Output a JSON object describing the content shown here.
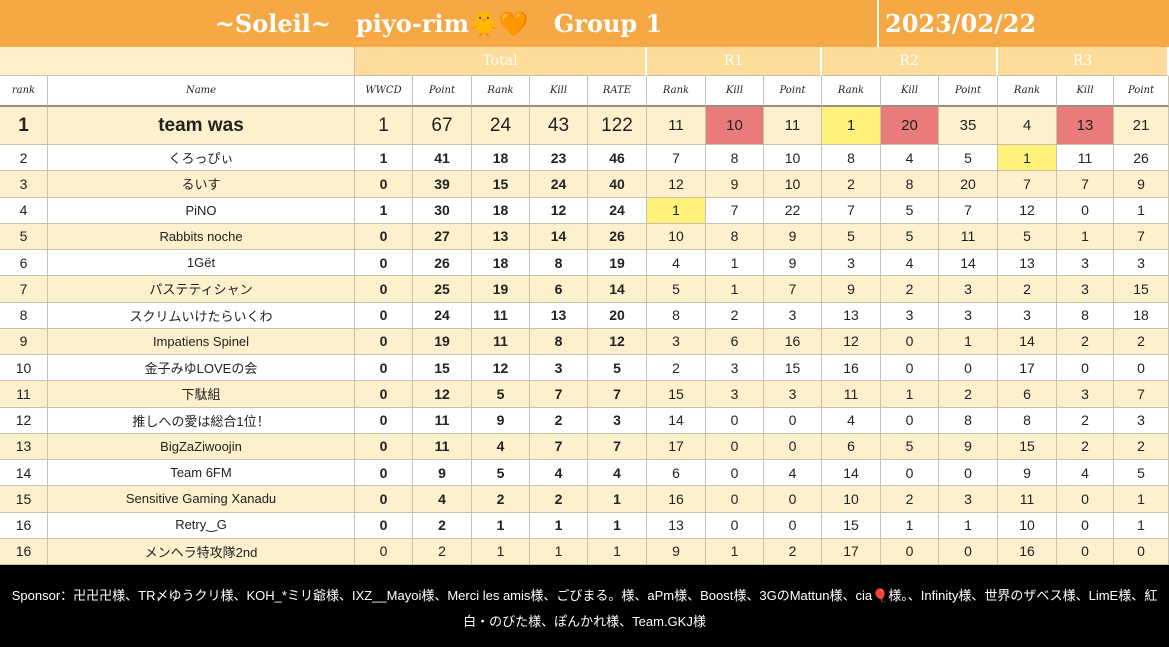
{
  "header": {
    "title": "~Soleil~   piyo-rim🐥🧡   Group 1",
    "date": "2023/02/22"
  },
  "table": {
    "groups": [
      "Total",
      "R1",
      "R2",
      "R3"
    ],
    "columns": [
      "rank",
      "Name",
      "WWCD",
      "Point",
      "Rank",
      "Kill",
      "RATE",
      "Rank",
      "Kill",
      "Point",
      "Rank",
      "Kill",
      "Point",
      "Rank",
      "Kill",
      "Point"
    ],
    "rows": [
      [
        1,
        "team was",
        1,
        67,
        24,
        43,
        122,
        11,
        10,
        11,
        1,
        20,
        35,
        4,
        13,
        21
      ],
      [
        2,
        "くろっぴぃ",
        1,
        41,
        18,
        23,
        46,
        7,
        8,
        10,
        8,
        4,
        5,
        1,
        11,
        26
      ],
      [
        3,
        "るいす",
        0,
        39,
        15,
        24,
        40,
        12,
        9,
        10,
        2,
        8,
        20,
        7,
        7,
        9
      ],
      [
        4,
        "PiNO",
        1,
        30,
        18,
        12,
        24,
        1,
        7,
        22,
        7,
        5,
        7,
        12,
        0,
        1
      ],
      [
        5,
        "Rabbits noche",
        0,
        27,
        13,
        14,
        26,
        10,
        8,
        9,
        5,
        5,
        11,
        5,
        1,
        7
      ],
      [
        6,
        "1Gët",
        0,
        26,
        18,
        8,
        19,
        4,
        1,
        9,
        3,
        4,
        14,
        13,
        3,
        3
      ],
      [
        7,
        "パステティシャン",
        0,
        25,
        19,
        6,
        14,
        5,
        1,
        7,
        9,
        2,
        3,
        2,
        3,
        15
      ],
      [
        8,
        "スクリムいけたらいくわ",
        0,
        24,
        11,
        13,
        20,
        8,
        2,
        3,
        13,
        3,
        3,
        3,
        8,
        18
      ],
      [
        9,
        "Impatiens Spinel",
        0,
        19,
        11,
        8,
        12,
        3,
        6,
        16,
        12,
        0,
        1,
        14,
        2,
        2
      ],
      [
        10,
        "金子みゆLOVEの会",
        0,
        15,
        12,
        3,
        5,
        2,
        3,
        15,
        16,
        0,
        0,
        17,
        0,
        0
      ],
      [
        11,
        "下駄組",
        0,
        12,
        5,
        7,
        7,
        15,
        3,
        3,
        11,
        1,
        2,
        6,
        3,
        7
      ],
      [
        12,
        "推しへの愛は総合1位！",
        0,
        11,
        9,
        2,
        3,
        14,
        0,
        0,
        4,
        0,
        8,
        8,
        2,
        3
      ],
      [
        13,
        "BigZaZiwoojin",
        0,
        11,
        4,
        7,
        7,
        17,
        0,
        0,
        6,
        5,
        9,
        15,
        2,
        2
      ],
      [
        14,
        "Team 6FM",
        0,
        9,
        5,
        4,
        4,
        6,
        0,
        4,
        14,
        0,
        0,
        9,
        4,
        5
      ],
      [
        15,
        "Sensitive Gaming Xanadu",
        0,
        4,
        2,
        2,
        1,
        16,
        0,
        0,
        10,
        2,
        3,
        11,
        0,
        1
      ],
      [
        16,
        "Retry‿G",
        0,
        2,
        1,
        1,
        1,
        13,
        0,
        0,
        15,
        1,
        1,
        10,
        0,
        1
      ],
      [
        16,
        "メンヘラ特攻隊2nd",
        0,
        2,
        1,
        1,
        1,
        9,
        1,
        2,
        17,
        0,
        0,
        16,
        0,
        0
      ]
    ]
  },
  "footer": {
    "sponsor": "Sponsor：卍卍卍様、TR〆ゆうクリ様、KOH_*ミリ爺様、IXZ__Mayoi様、Merci les amis様、ごびまる。様、aPm様、Boost様、3GのMattun様、cia🎈様。、Infinity様、世界のザベス様、LimE様、紅白・のびた様、ぽんかれ様、Team.GKJ様"
  }
}
